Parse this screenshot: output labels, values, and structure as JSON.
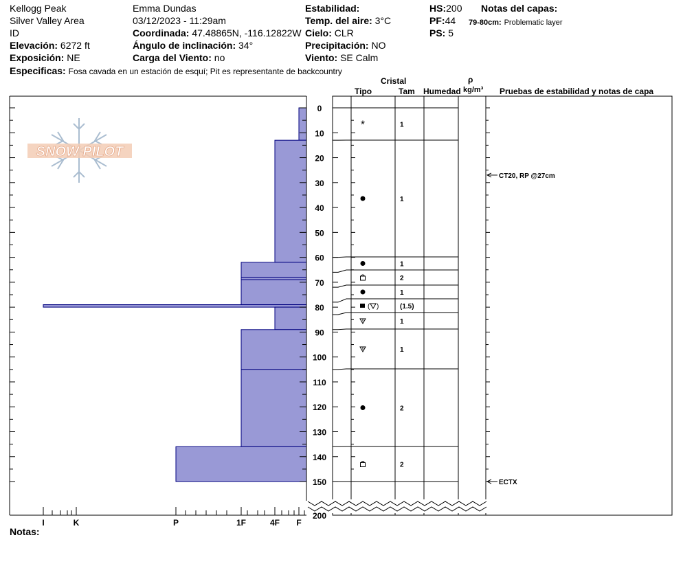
{
  "header": {
    "location": "Kellogg Peak",
    "area": "Silver Valley Area",
    "id_label": "ID",
    "elevation_label": "Elevación:",
    "elevation_value": "6272 ft",
    "aspect_label": "Exposición:",
    "aspect_value": "NE",
    "observer": "Emma Dundas",
    "datetime": "03/12/2023 - 11:29am",
    "coord_label": "Coordinada:",
    "coord_value": "47.48865N, -116.12822W",
    "incline_label": "Ángulo de inclinación:",
    "incline_value": "34°",
    "windload_label": "Carga del Viento:",
    "windload_value": "no",
    "stability_label": "Estabilidad:",
    "airtemp_label": "Temp. del aire:",
    "airtemp_value": "3°C",
    "sky_label": "Cielo:",
    "sky_value": "CLR",
    "precip_label": "Precipitación:",
    "precip_value": "NO",
    "wind_label": "Viento:",
    "wind_value": "SE Calm",
    "hs_label": "HS:",
    "hs_value": "200",
    "pf_label": "PF:",
    "pf_value": "44",
    "ps_label": "PS:",
    "ps_value": "5",
    "layer_notes_label": "Notas del capas:",
    "layer_note_range": "79-80cm:",
    "layer_note_text": "Problematic layer",
    "specifics_label": "Especificas:",
    "specifics_value": "Fosa cavada en un estación de esquí; Pit es representante de backcountry"
  },
  "columns": {
    "crystal": "Cristal",
    "type": "Tipo",
    "size": "Tam",
    "moisture": "Humedad",
    "rho": "ρ",
    "density_unit": "kg/m³",
    "tests": "Pruebas de estabilidad y notas de capa"
  },
  "logo_text": "SNOW PILOT",
  "notes_label": "Notas:",
  "colors": {
    "hardness_fill": "#9999d6",
    "hardness_line": "#00007f"
  },
  "chart_data": {
    "type": "snow-profile",
    "depth_unit": "cm",
    "depth_ticks": [
      0,
      10,
      20,
      30,
      40,
      50,
      60,
      70,
      80,
      90,
      100,
      110,
      120,
      130,
      140,
      150,
      200
    ],
    "hardness_scale": [
      "I",
      "K",
      "P",
      "1F",
      "4F",
      "F"
    ],
    "hardness_layers": [
      {
        "top": 0,
        "bottom": 13,
        "hardness": "F"
      },
      {
        "top": 13,
        "bottom": 62,
        "hardness": "4F"
      },
      {
        "top": 62,
        "bottom": 68,
        "hardness": "1F"
      },
      {
        "top": 68,
        "bottom": 69,
        "hardness": "1F"
      },
      {
        "top": 69,
        "bottom": 79,
        "hardness": "1F"
      },
      {
        "top": 79,
        "bottom": 80,
        "hardness": "I"
      },
      {
        "top": 80,
        "bottom": 89,
        "hardness": "4F"
      },
      {
        "top": 89,
        "bottom": 105,
        "hardness": "1F"
      },
      {
        "top": 105,
        "bottom": 136,
        "hardness": "1F"
      },
      {
        "top": 136,
        "bottom": 150,
        "hardness": "P"
      }
    ],
    "crystal_rows": [
      {
        "top": 0,
        "bottom": 13,
        "type": "snowflake",
        "size": "1"
      },
      {
        "top": 13,
        "bottom": 60,
        "type": "dot",
        "size": "1"
      },
      {
        "top": 60,
        "bottom": 66,
        "type": "dot",
        "size": "1"
      },
      {
        "top": 66,
        "bottom": 72,
        "type": "faceted",
        "size": "2"
      },
      {
        "top": 72,
        "bottom": 78,
        "type": "dot",
        "size": "1"
      },
      {
        "top": 78,
        "bottom": 83,
        "type": "square-hoar",
        "size": "(1.5)"
      },
      {
        "top": 83,
        "bottom": 89,
        "type": "hoar",
        "size": "1"
      },
      {
        "top": 89,
        "bottom": 105,
        "type": "hoar",
        "size": "1"
      },
      {
        "top": 105,
        "bottom": 136,
        "type": "dot",
        "size": "2"
      },
      {
        "top": 136,
        "bottom": 150,
        "type": "faceted",
        "size": "2"
      }
    ],
    "stability_tests": [
      {
        "depth": 27,
        "label": "CT20, RP @27cm"
      },
      {
        "depth": 150,
        "label": "ECTX"
      }
    ]
  }
}
